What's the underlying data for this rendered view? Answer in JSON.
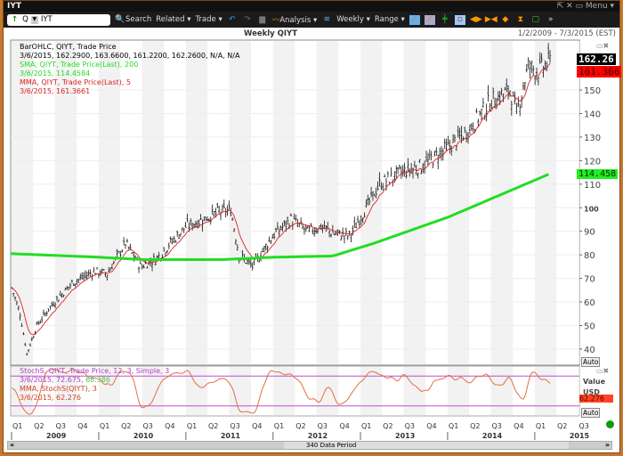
{
  "window": {
    "title": "IYT",
    "menu": "Menu"
  },
  "toolbar": {
    "symbol_prefix": "Q",
    "symbol": "IYT",
    "search": "Search",
    "related": "Related",
    "trade": "Trade",
    "analysis": "Analysis",
    "period": "Weekly",
    "range": "Range"
  },
  "header": {
    "title": "Weekly QIYT",
    "date_range": "1/2/2009 - 7/3/2015 (EST)"
  },
  "legend": {
    "bar_title": "BarOHLC, QIYT, Trade Price",
    "bar_values": "3/6/2015, 162.2900, 163.6600, 161.2200, 162.2600, N/A, N/A",
    "sma_title": "SMA, QIYT, Trade Price(Last),  200",
    "sma_values": "3/6/2015, 114.4584",
    "mma_title": "MMA, QIYT, Trade Price(Last),  5",
    "mma_values": "3/6/2015, 161.3661",
    "stoch_title": "StochS, QIYT, Trade Price,  12, 3, Simple, 3",
    "stoch_values": "3/6/2015, 72.675, ",
    "stoch_d": "68.386",
    "stoch_mma_title": "MMA, StochS(QIYT),  3",
    "stoch_mma_values": "3/6/2015, 62.276"
  },
  "badges": {
    "last": "162.26",
    "mma": "161.366",
    "sma": "114.458",
    "stoch": "62.276",
    "value": "Value",
    "usd": "USD",
    "auto": "Auto"
  },
  "scroll": {
    "label": "340 Data Period"
  },
  "colors": {
    "sma": "#22dd22",
    "mma": "#dd2222",
    "stoch": "#e07040",
    "stoch_bands": "#c050d0",
    "frame": "#c8782c"
  },
  "chart_data": {
    "type": "ohlc",
    "title": "Weekly QIYT",
    "y_ticks": [
      40,
      50,
      60,
      70,
      80,
      90,
      100,
      110,
      120,
      130,
      140,
      150
    ],
    "ylim": [
      35,
      170
    ],
    "x_range": [
      "2009-01-02",
      "2015-07-03"
    ],
    "quarter_labels": [
      "Q1",
      "Q2",
      "Q3",
      "Q4"
    ],
    "years": [
      "2009",
      "2010",
      "2011",
      "2012",
      "2013",
      "2014",
      "2015"
    ],
    "price_close_approx": [
      [
        "2009-01-02",
        66
      ],
      [
        "2009-02-06",
        55
      ],
      [
        "2009-03-06",
        38
      ],
      [
        "2009-04-17",
        50
      ],
      [
        "2009-06-12",
        58
      ],
      [
        "2009-09-11",
        68
      ],
      [
        "2009-12-11",
        73
      ],
      [
        "2010-02-05",
        72
      ],
      [
        "2010-04-23",
        85
      ],
      [
        "2010-06-25",
        75
      ],
      [
        "2010-08-27",
        78
      ],
      [
        "2010-10-29",
        85
      ],
      [
        "2010-12-31",
        92
      ],
      [
        "2011-03-11",
        95
      ],
      [
        "2011-05-13",
        98
      ],
      [
        "2011-07-08",
        99
      ],
      [
        "2011-08-12",
        80
      ],
      [
        "2011-10-07",
        75
      ],
      [
        "2011-12-30",
        88
      ],
      [
        "2012-03-16",
        95
      ],
      [
        "2012-05-25",
        90
      ],
      [
        "2012-07-20",
        92
      ],
      [
        "2012-09-14",
        89
      ],
      [
        "2012-11-16",
        88
      ],
      [
        "2013-01-25",
        100
      ],
      [
        "2013-03-22",
        110
      ],
      [
        "2013-06-21",
        115
      ],
      [
        "2013-09-20",
        118
      ],
      [
        "2013-12-27",
        125
      ],
      [
        "2014-03-21",
        132
      ],
      [
        "2014-06-27",
        145
      ],
      [
        "2014-09-19",
        150
      ],
      [
        "2014-10-17",
        140
      ],
      [
        "2014-12-05",
        160
      ],
      [
        "2015-01-16",
        158
      ],
      [
        "2015-03-06",
        162.26
      ]
    ],
    "sma200_approx": [
      [
        "2009-01-02",
        80.5
      ],
      [
        "2010-01-01",
        79
      ],
      [
        "2010-07-02",
        78
      ],
      [
        "2011-06-03",
        78
      ],
      [
        "2012-01-06",
        79
      ],
      [
        "2012-09-07",
        79.5
      ],
      [
        "2013-03-01",
        85
      ],
      [
        "2014-01-03",
        96
      ],
      [
        "2015-03-06",
        114.46
      ]
    ],
    "stoch_bands": [
      20,
      80
    ]
  }
}
